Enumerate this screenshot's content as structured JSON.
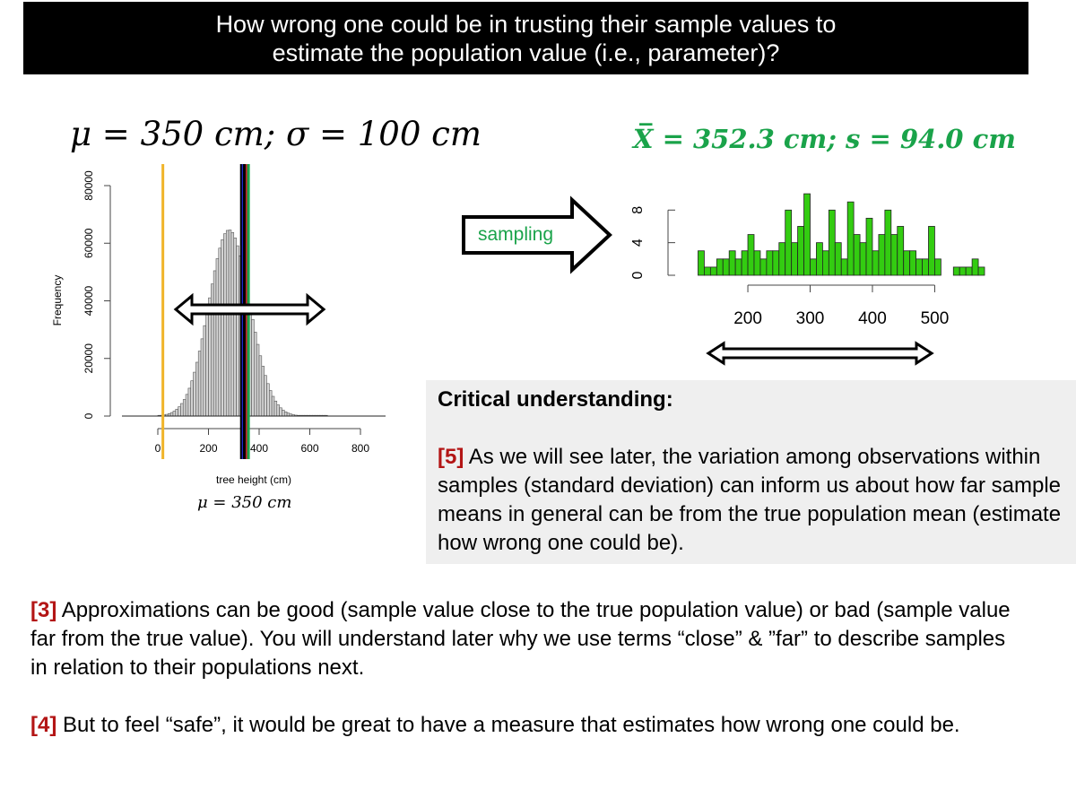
{
  "header": {
    "line1": "How wrong one could be in trusting their sample values to",
    "line2": "estimate the population value (i.e., parameter)?"
  },
  "population": {
    "params_label": "μ = 350 cm; σ = 100 cm",
    "mu_caption": "μ = 350 cm",
    "colors": {
      "bars": "#d3d3d3",
      "mean_line": "#000000",
      "line_yellow": "#f0b429",
      "line_blue": "#1f2ad6",
      "line_red": "#c0202a",
      "line_green": "#1aa34a"
    }
  },
  "sample": {
    "stats_label": "X̅ = 352.3 cm; s = 94.0 cm",
    "bar_color": "#33cc11"
  },
  "arrow_label": "sampling",
  "critical": {
    "title": "Critical understanding:",
    "ref": "[5]",
    "text": "As we will see later, the variation among observations within samples (standard deviation) can inform us about how far sample means in general can be from the true population mean (estimate how wrong one could be)."
  },
  "paragraphs": {
    "p3_ref": "[3]",
    "p3_text": "Approximations can be good (sample value close to the true population value) or bad (sample value far from the true value).  You will understand later why we use terms “close” & ”far” to describe samples in relation to their populations next.",
    "p4_ref": "[4]",
    "p4_text": "But to feel “safe”, it would be great to have a measure that estimates how wrong one could be."
  },
  "chart_data": [
    {
      "type": "bar",
      "title": "",
      "xlabel": "tree height (cm)",
      "ylabel": "Frequency",
      "xlim": [
        0,
        800
      ],
      "ylim": [
        0,
        80000
      ],
      "x_ticks": [
        "0",
        "200",
        "400",
        "600",
        "800"
      ],
      "y_ticks": [
        "0",
        "20000",
        "40000",
        "60000",
        "80000"
      ],
      "categories": [
        5,
        15,
        25,
        35,
        45,
        55,
        65,
        75,
        85,
        95,
        105,
        115,
        125,
        135,
        145,
        155,
        165,
        175,
        185,
        195,
        205,
        215,
        225,
        235,
        245,
        255,
        265,
        275,
        285,
        295,
        305,
        315,
        325,
        335,
        345,
        355,
        365,
        375,
        385,
        395,
        405,
        415,
        425,
        435,
        445,
        455,
        465,
        475,
        485,
        495,
        505,
        515,
        525,
        535,
        545,
        555,
        565,
        575,
        585,
        595,
        605,
        615,
        625,
        635,
        645,
        655,
        665,
        675,
        685,
        695,
        705,
        715,
        725,
        735,
        745,
        755,
        765,
        775,
        785,
        795
      ],
      "values": [
        175,
        265,
        396,
        584,
        848,
        1213,
        1709,
        2370,
        3238,
        4356,
        5770,
        7527,
        9669,
        12229,
        15232,
        18681,
        22557,
        26817,
        31389,
        36174,
        41044,
        45855,
        50445,
        54646,
        58290,
        61222,
        63308,
        64456,
        64594,
        63723,
        61854,
        59111,
        55642,
        51622,
        47237,
        42670,
        38102,
        33547,
        29121,
        24886,
        20931,
        17320,
        14090,
        11270,
        8862,
        6851,
        5209,
        3893,
        2860,
        2066,
        1467,
        1024,
        702,
        474,
        314,
        205,
        131,
        83,
        51,
        31,
        19,
        11,
        7,
        4,
        2,
        1,
        1,
        0,
        0,
        0,
        0,
        0,
        0,
        0,
        0,
        0,
        0,
        0,
        0,
        0
      ],
      "vertical_lines": [
        {
          "name": "yellow",
          "x": 20,
          "color": "#f0b429"
        },
        {
          "name": "black-left",
          "x": 330,
          "color": "#000000"
        },
        {
          "name": "blue",
          "x": 337,
          "color": "#1f2ad6"
        },
        {
          "name": "black",
          "x": 345,
          "color": "#000000"
        },
        {
          "name": "red",
          "x": 352,
          "color": "#c0202a"
        },
        {
          "name": "green",
          "x": 358,
          "color": "#1aa34a"
        }
      ]
    },
    {
      "type": "bar",
      "title": "",
      "xlabel": "",
      "ylabel": "",
      "xlim": [
        115,
        580
      ],
      "ylim": [
        0,
        11
      ],
      "x_ticks": [
        "200",
        "300",
        "400",
        "500"
      ],
      "y_ticks": [
        "0",
        "4",
        "8"
      ],
      "x": [
        125,
        135,
        145,
        155,
        165,
        175,
        185,
        195,
        205,
        215,
        225,
        235,
        245,
        255,
        265,
        275,
        285,
        295,
        305,
        315,
        325,
        335,
        345,
        355,
        365,
        375,
        385,
        395,
        405,
        415,
        425,
        435,
        445,
        455,
        465,
        475,
        485,
        495,
        505,
        515,
        525,
        535,
        545,
        555,
        565,
        575
      ],
      "values": [
        3,
        1,
        1,
        2,
        2,
        3,
        2,
        3,
        5,
        3,
        2,
        3,
        3,
        4,
        8,
        4,
        6,
        10,
        2,
        4,
        3,
        8,
        4,
        2,
        9,
        5,
        4,
        7,
        3,
        5,
        8,
        5,
        6,
        3,
        3,
        2,
        2,
        6,
        2,
        0,
        0,
        1,
        1,
        1,
        2,
        1
      ]
    }
  ]
}
